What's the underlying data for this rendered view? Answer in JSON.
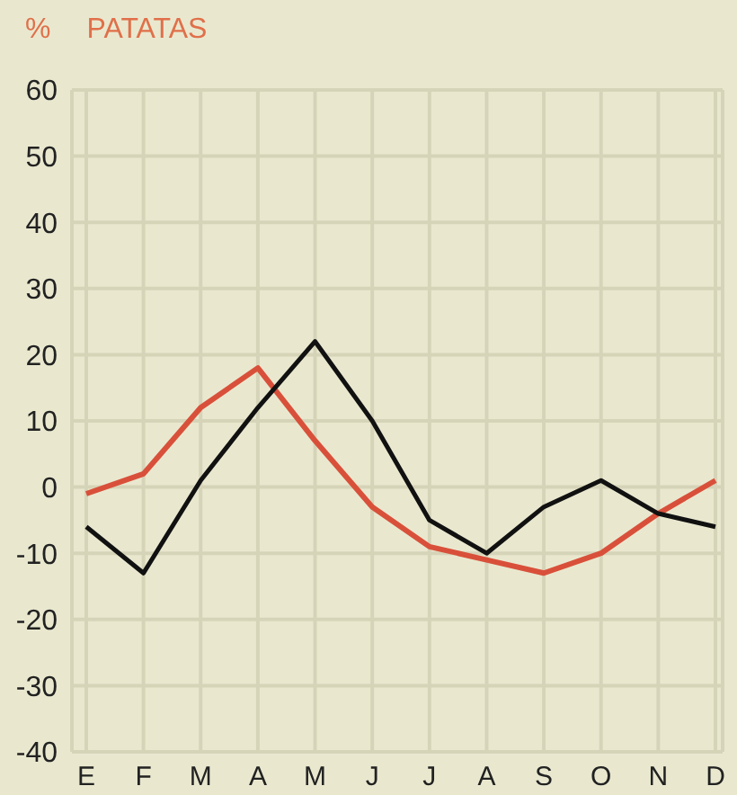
{
  "chart_data": {
    "type": "line",
    "title": "PATATAS",
    "ylabel": "%",
    "categories": [
      "E",
      "F",
      "M",
      "A",
      "M",
      "J",
      "J",
      "A",
      "S",
      "O",
      "N",
      "D"
    ],
    "series": [
      {
        "color": "#d9503a",
        "values": [
          -1,
          2,
          12,
          18,
          7,
          -3,
          -9,
          -11,
          -13,
          -10,
          -4,
          1
        ]
      },
      {
        "color": "#111111",
        "values": [
          -6,
          -13,
          1,
          12,
          22,
          10,
          -5,
          -10,
          -3,
          1,
          -4,
          -6
        ]
      }
    ],
    "ylim": [
      -40,
      60
    ],
    "yticks": [
      -40,
      -30,
      -20,
      -10,
      0,
      10,
      20,
      30,
      40,
      50,
      60
    ],
    "grid": true,
    "marker": "none",
    "line_style": "solid"
  }
}
